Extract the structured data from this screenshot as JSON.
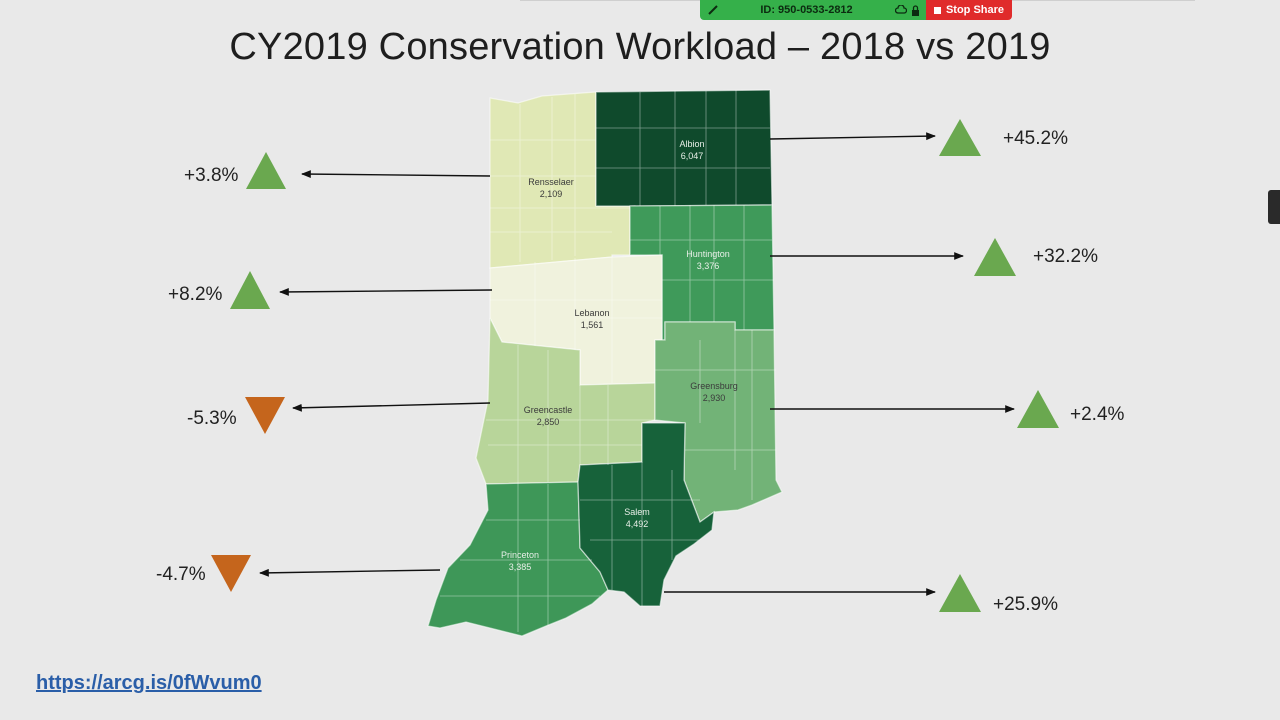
{
  "title": "CY2019 Conservation Workload – 2018 vs 2019",
  "meeting_bar": {
    "meeting_id": "ID: 950-0533-2812",
    "stop_share_label": "Stop Share"
  },
  "regions": [
    {
      "name": "Rensselaer",
      "value": "2,109",
      "change": "+3.8%",
      "direction": "up",
      "color": "#e0e8b5"
    },
    {
      "name": "Albion",
      "value": "6,047",
      "change": "+45.2%",
      "direction": "up",
      "color": "#0f4a2c"
    },
    {
      "name": "Huntington",
      "value": "3,376",
      "change": "+32.2%",
      "direction": "up",
      "color": "#3f9a5a"
    },
    {
      "name": "Lebanon",
      "value": "1,561",
      "change": "+8.2%",
      "direction": "up",
      "color": "#f0f2dd"
    },
    {
      "name": "Greencastle",
      "value": "2,850",
      "change": "-5.3%",
      "direction": "down",
      "color": "#b8d59a"
    },
    {
      "name": "Greensburg",
      "value": "2,930",
      "change": "+2.4%",
      "direction": "up",
      "color": "#72b377"
    },
    {
      "name": "Princeton",
      "value": "3,385",
      "change": "-4.7%",
      "direction": "down",
      "color": "#3e9758"
    },
    {
      "name": "Salem",
      "value": "4,492",
      "change": "+25.9%",
      "direction": "up",
      "color": "#17623a"
    }
  ],
  "legend_colors": {
    "up": "#6aa84f",
    "down": "#c5651c"
  },
  "link": "https://arcg.is/0fWvum0"
}
